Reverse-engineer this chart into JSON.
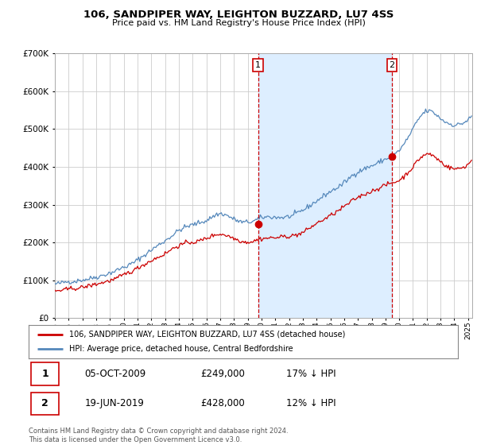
{
  "title": "106, SANDPIPER WAY, LEIGHTON BUZZARD, LU7 4SS",
  "subtitle": "Price paid vs. HM Land Registry's House Price Index (HPI)",
  "legend_line1": "106, SANDPIPER WAY, LEIGHTON BUZZARD, LU7 4SS (detached house)",
  "legend_line2": "HPI: Average price, detached house, Central Bedfordshire",
  "annotation1": [
    "1",
    "05-OCT-2009",
    "£249,000",
    "17% ↓ HPI"
  ],
  "annotation2": [
    "2",
    "19-JUN-2019",
    "£428,000",
    "12% ↓ HPI"
  ],
  "footer": "Contains HM Land Registry data © Crown copyright and database right 2024.\nThis data is licensed under the Open Government Licence v3.0.",
  "marker1_x": 2009.75,
  "marker1_y": 249000,
  "marker2_x": 2019.47,
  "marker2_y": 428000,
  "red_color": "#cc0000",
  "blue_color": "#5588bb",
  "blue_fill_color": "#ddeeff",
  "marker_vline_color": "#cc0000",
  "background_color": "#ffffff",
  "grid_color": "#cccccc",
  "ylim": [
    0,
    700000
  ],
  "xlim_start": 1995.0,
  "xlim_end": 2025.3
}
